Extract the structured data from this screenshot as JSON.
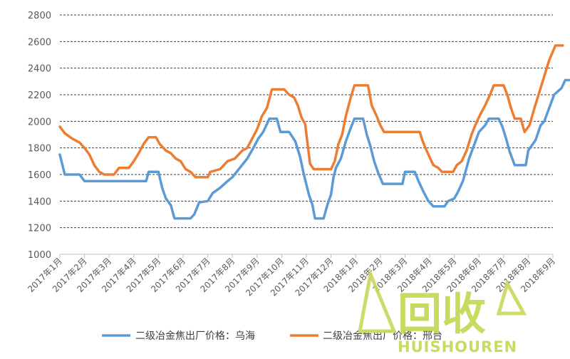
{
  "chart_data": {
    "type": "line",
    "title": "",
    "xlabel": "",
    "ylabel": "",
    "ylim": [
      1000,
      2800
    ],
    "yticks": [
      1000,
      1200,
      1400,
      1600,
      1800,
      2000,
      2200,
      2400,
      2600,
      2800
    ],
    "grid": "horizontal dashed",
    "legend_position": "bottom",
    "x_tick_labels": [
      "2017年1月",
      "2017年2月",
      "2017年3月",
      "2017年4月",
      "2017年5月",
      "2017年6月",
      "2017年7月",
      "2017年8月",
      "2017年9月",
      "2017年10月",
      "2017年11月",
      "2017年12月",
      "2018年1月",
      "2018年2月",
      "2018年3月",
      "2018年4月",
      "2018年5月",
      "2018年6月",
      "2018年7月",
      "2018年8月",
      "2018年9月"
    ],
    "series": [
      {
        "name": "二级冶金焦出厂价格：乌海",
        "color": "#5b9bd5",
        "points": [
          [
            0,
            1750
          ],
          [
            0.2,
            1600
          ],
          [
            0.8,
            1600
          ],
          [
            1.0,
            1550
          ],
          [
            1.5,
            1550
          ],
          [
            2.0,
            1550
          ],
          [
            3.0,
            1550
          ],
          [
            3.5,
            1550
          ],
          [
            3.6,
            1620
          ],
          [
            4.0,
            1620
          ],
          [
            4.15,
            1500
          ],
          [
            4.3,
            1420
          ],
          [
            4.5,
            1370
          ],
          [
            4.65,
            1270
          ],
          [
            5.0,
            1270
          ],
          [
            5.3,
            1270
          ],
          [
            5.45,
            1300
          ],
          [
            5.65,
            1390
          ],
          [
            6.0,
            1400
          ],
          [
            6.2,
            1460
          ],
          [
            6.5,
            1500
          ],
          [
            6.8,
            1550
          ],
          [
            7.0,
            1580
          ],
          [
            7.3,
            1650
          ],
          [
            7.6,
            1720
          ],
          [
            7.85,
            1800
          ],
          [
            8.05,
            1870
          ],
          [
            8.25,
            1920
          ],
          [
            8.5,
            2020
          ],
          [
            8.8,
            2020
          ],
          [
            8.95,
            1920
          ],
          [
            9.3,
            1920
          ],
          [
            9.55,
            1850
          ],
          [
            9.75,
            1730
          ],
          [
            9.9,
            1600
          ],
          [
            10.1,
            1450
          ],
          [
            10.25,
            1370
          ],
          [
            10.35,
            1270
          ],
          [
            10.7,
            1270
          ],
          [
            10.85,
            1370
          ],
          [
            11.0,
            1450
          ],
          [
            11.1,
            1580
          ],
          [
            11.2,
            1650
          ],
          [
            11.4,
            1720
          ],
          [
            11.6,
            1850
          ],
          [
            11.8,
            1950
          ],
          [
            11.95,
            2020
          ],
          [
            12.3,
            2020
          ],
          [
            12.45,
            1900
          ],
          [
            12.6,
            1810
          ],
          [
            12.75,
            1700
          ],
          [
            12.9,
            1620
          ],
          [
            13.1,
            1530
          ],
          [
            13.9,
            1530
          ],
          [
            14.0,
            1620
          ],
          [
            14.4,
            1620
          ],
          [
            14.55,
            1550
          ],
          [
            14.75,
            1470
          ],
          [
            14.95,
            1400
          ],
          [
            15.15,
            1360
          ],
          [
            15.6,
            1360
          ],
          [
            15.75,
            1400
          ],
          [
            16.0,
            1420
          ],
          [
            16.15,
            1470
          ],
          [
            16.35,
            1550
          ],
          [
            16.6,
            1720
          ],
          [
            16.8,
            1820
          ],
          [
            17.0,
            1920
          ],
          [
            17.25,
            1970
          ],
          [
            17.4,
            2020
          ],
          [
            17.8,
            2020
          ],
          [
            17.95,
            1960
          ],
          [
            18.1,
            1870
          ],
          [
            18.25,
            1770
          ],
          [
            18.45,
            1670
          ],
          [
            18.9,
            1670
          ],
          [
            19.0,
            1780
          ],
          [
            19.3,
            1860
          ],
          [
            19.5,
            1970
          ],
          [
            19.65,
            2000
          ],
          [
            19.85,
            2100
          ],
          [
            20.05,
            2200
          ],
          [
            20.35,
            2250
          ],
          [
            20.5,
            2310
          ],
          [
            20.8,
            2310
          ]
        ]
      },
      {
        "name": "二级冶金焦出厂价格：邢台",
        "color": "#ed7d31",
        "points": [
          [
            0,
            1960
          ],
          [
            0.2,
            1910
          ],
          [
            0.5,
            1870
          ],
          [
            0.8,
            1840
          ],
          [
            1.0,
            1800
          ],
          [
            1.2,
            1750
          ],
          [
            1.4,
            1670
          ],
          [
            1.6,
            1620
          ],
          [
            1.8,
            1600
          ],
          [
            2.2,
            1600
          ],
          [
            2.4,
            1650
          ],
          [
            2.8,
            1650
          ],
          [
            3.0,
            1700
          ],
          [
            3.2,
            1760
          ],
          [
            3.4,
            1830
          ],
          [
            3.6,
            1880
          ],
          [
            3.9,
            1880
          ],
          [
            4.05,
            1830
          ],
          [
            4.3,
            1780
          ],
          [
            4.5,
            1760
          ],
          [
            4.7,
            1720
          ],
          [
            4.9,
            1700
          ],
          [
            5.1,
            1640
          ],
          [
            5.3,
            1620
          ],
          [
            5.5,
            1580
          ],
          [
            6.0,
            1580
          ],
          [
            6.1,
            1620
          ],
          [
            6.5,
            1640
          ],
          [
            6.8,
            1700
          ],
          [
            7.1,
            1720
          ],
          [
            7.4,
            1780
          ],
          [
            7.6,
            1800
          ],
          [
            7.8,
            1870
          ],
          [
            8.0,
            1940
          ],
          [
            8.2,
            2040
          ],
          [
            8.4,
            2100
          ],
          [
            8.6,
            2240
          ],
          [
            9.1,
            2240
          ],
          [
            9.3,
            2200
          ],
          [
            9.5,
            2180
          ],
          [
            9.65,
            2120
          ],
          [
            9.8,
            2030
          ],
          [
            9.95,
            1980
          ],
          [
            10.05,
            1830
          ],
          [
            10.15,
            1680
          ],
          [
            10.3,
            1640
          ],
          [
            11.0,
            1640
          ],
          [
            11.15,
            1700
          ],
          [
            11.3,
            1830
          ],
          [
            11.45,
            1900
          ],
          [
            11.6,
            2040
          ],
          [
            11.8,
            2180
          ],
          [
            11.95,
            2270
          ],
          [
            12.5,
            2270
          ],
          [
            12.65,
            2120
          ],
          [
            12.85,
            2040
          ],
          [
            13.0,
            1970
          ],
          [
            13.15,
            1920
          ],
          [
            13.6,
            1920
          ],
          [
            14.0,
            1920
          ],
          [
            14.6,
            1920
          ],
          [
            14.7,
            1860
          ],
          [
            14.85,
            1790
          ],
          [
            15.0,
            1730
          ],
          [
            15.15,
            1670
          ],
          [
            15.35,
            1650
          ],
          [
            15.5,
            1620
          ],
          [
            15.95,
            1620
          ],
          [
            16.1,
            1670
          ],
          [
            16.3,
            1700
          ],
          [
            16.5,
            1780
          ],
          [
            16.7,
            1900
          ],
          [
            16.85,
            1970
          ],
          [
            17.05,
            2050
          ],
          [
            17.25,
            2120
          ],
          [
            17.45,
            2200
          ],
          [
            17.6,
            2270
          ],
          [
            18.0,
            2270
          ],
          [
            18.15,
            2200
          ],
          [
            18.3,
            2100
          ],
          [
            18.45,
            2020
          ],
          [
            18.7,
            2020
          ],
          [
            18.85,
            1920
          ],
          [
            19.05,
            1970
          ],
          [
            19.25,
            2100
          ],
          [
            19.45,
            2220
          ],
          [
            19.65,
            2340
          ],
          [
            19.85,
            2460
          ],
          [
            20.1,
            2570
          ],
          [
            20.4,
            2570
          ]
        ]
      }
    ]
  },
  "watermark": {
    "main_text": "回收",
    "sub_text": "HUISHOUREN",
    "logo": "leaf-logo",
    "color": "#bfd44a"
  }
}
